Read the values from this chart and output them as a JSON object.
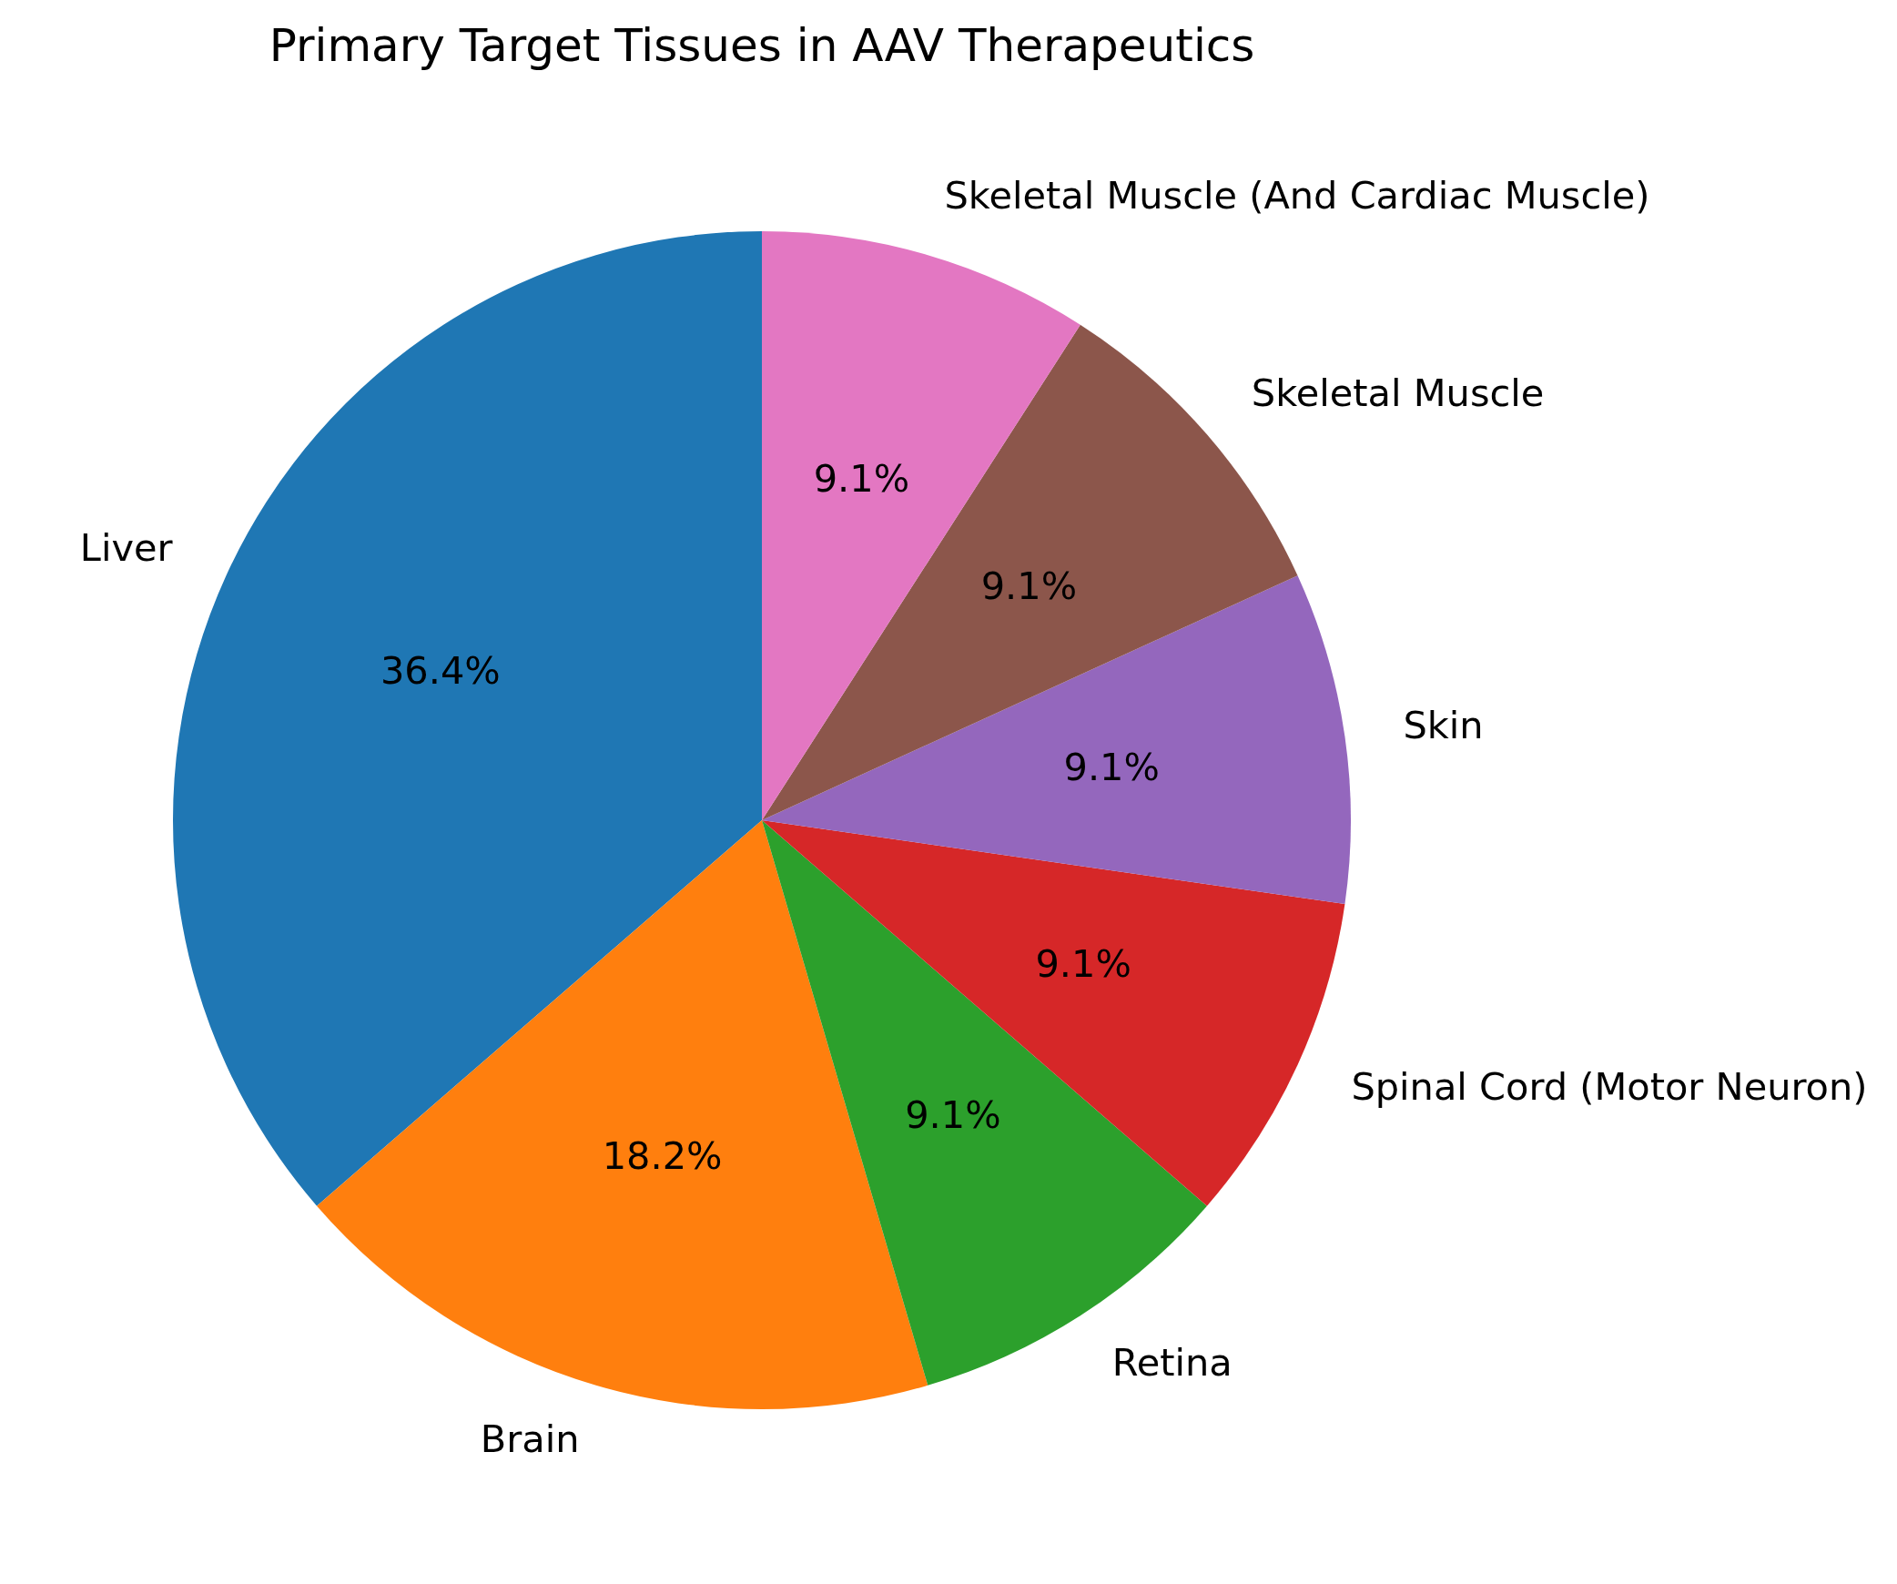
{
  "chart_data": {
    "type": "pie",
    "title": "Primary Target Tissues in AAV Therapeutics",
    "categories": [
      "Liver",
      "Brain",
      "Retina",
      "Spinal Cord (Motor Neuron)",
      "Skin",
      "Skeletal Muscle",
      "Skeletal Muscle (And Cardiac Muscle)"
    ],
    "values": [
      36.4,
      18.2,
      9.1,
      9.1,
      9.1,
      9.1,
      9.1
    ],
    "value_labels": [
      "36.4%",
      "18.2%",
      "9.1%",
      "9.1%",
      "9.1%",
      "9.1%",
      "9.1%"
    ],
    "colors": [
      "#1f77b4",
      "#ff7f0e",
      "#2ca02c",
      "#d62728",
      "#9467bd",
      "#8c564b",
      "#e377c2"
    ]
  }
}
